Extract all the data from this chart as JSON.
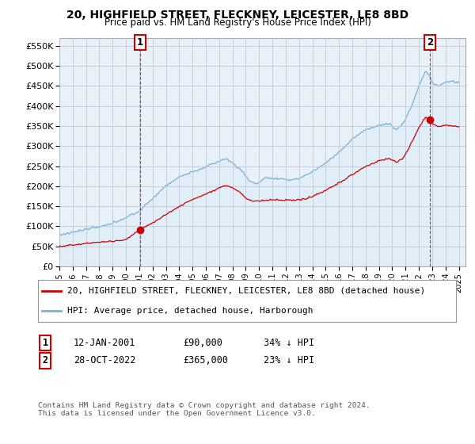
{
  "title": "20, HIGHFIELD STREET, FLECKNEY, LEICESTER, LE8 8BD",
  "subtitle": "Price paid vs. HM Land Registry's House Price Index (HPI)",
  "ylabel_ticks": [
    "£0",
    "£50K",
    "£100K",
    "£150K",
    "£200K",
    "£250K",
    "£300K",
    "£350K",
    "£400K",
    "£450K",
    "£500K",
    "£550K"
  ],
  "ytick_values": [
    0,
    50000,
    100000,
    150000,
    200000,
    250000,
    300000,
    350000,
    400000,
    450000,
    500000,
    550000
  ],
  "ylim": [
    0,
    570000
  ],
  "hpi_color": "#7ab0d4",
  "hpi_fill": "#ddeef7",
  "price_color": "#cc0000",
  "bg_color": "#ffffff",
  "plot_bg": "#e8f0f8",
  "grid_color": "#c0c8d8",
  "sale1_x": 2001.04,
  "sale1_y": 90000,
  "sale2_x": 2022.83,
  "sale2_y": 365000,
  "legend_line1": "20, HIGHFIELD STREET, FLECKNEY, LEICESTER, LE8 8BD (detached house)",
  "legend_line2": "HPI: Average price, detached house, Harborough",
  "footnote": "Contains HM Land Registry data © Crown copyright and database right 2024.\nThis data is licensed under the Open Government Licence v3.0.",
  "xmin": 1995.0,
  "xmax": 2025.5,
  "xtick_years": [
    1995,
    1996,
    1997,
    1998,
    1999,
    2000,
    2001,
    2002,
    2003,
    2004,
    2005,
    2006,
    2007,
    2008,
    2009,
    2010,
    2011,
    2012,
    2013,
    2014,
    2015,
    2016,
    2017,
    2018,
    2019,
    2020,
    2021,
    2022,
    2023,
    2024,
    2025
  ]
}
